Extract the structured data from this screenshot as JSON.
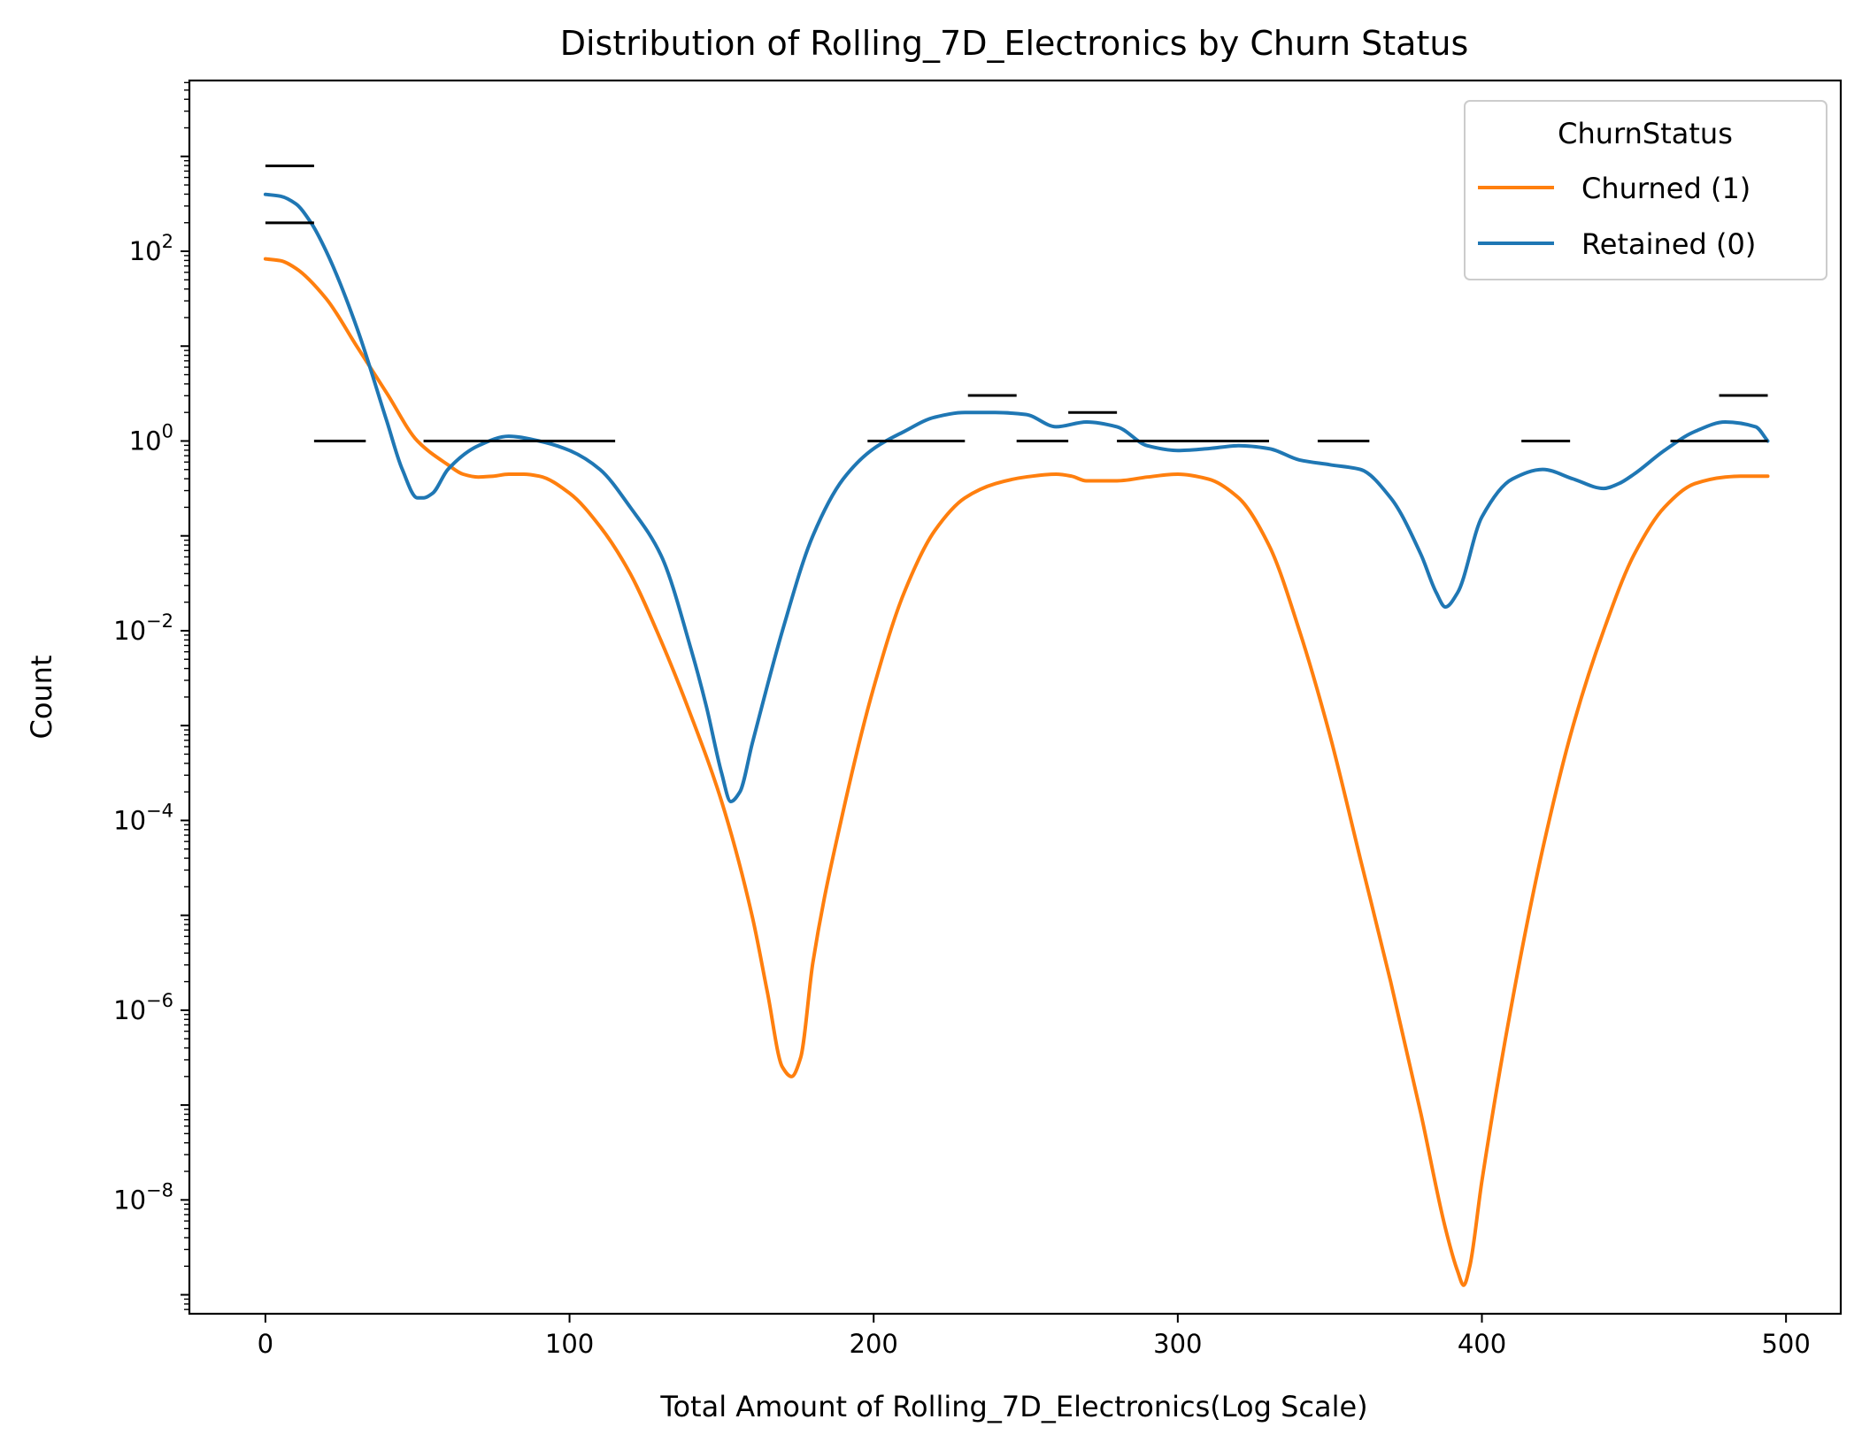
{
  "chart_data": {
    "type": "line",
    "title": "Distribution of Rolling_7D_Electronics by Churn Status",
    "xlabel": "Total Amount of Rolling_7D_Electronics(Log Scale)",
    "ylabel": "Count",
    "xlim": [
      -25,
      518
    ],
    "ylim_log10": [
      -9.2,
      3.8
    ],
    "yscale": "log",
    "grid": false,
    "x_ticks": [
      {
        "value": 0,
        "label": "0"
      },
      {
        "value": 100,
        "label": "100"
      },
      {
        "value": 200,
        "label": "200"
      },
      {
        "value": 300,
        "label": "300"
      },
      {
        "value": 400,
        "label": "400"
      },
      {
        "value": 500,
        "label": "500"
      }
    ],
    "y_ticks": [
      {
        "exp": 2,
        "base": "10",
        "sup": "2"
      },
      {
        "exp": 0,
        "base": "10",
        "sup": "0"
      },
      {
        "exp": -2,
        "base": "10",
        "sup": "−2"
      },
      {
        "exp": -4,
        "base": "10",
        "sup": "−4"
      },
      {
        "exp": -6,
        "base": "10",
        "sup": "−6"
      },
      {
        "exp": -8,
        "base": "10",
        "sup": "−8"
      }
    ],
    "legend": {
      "title": "ChurnStatus",
      "placement": "top-right",
      "entries": [
        {
          "label": "Churned (1)",
          "series_index": 0
        },
        {
          "label": "Retained (0)",
          "series_index": 1
        }
      ]
    },
    "series": [
      {
        "name": "Churned (1)",
        "color": "#ff7f0e",
        "x": [
          0,
          5,
          10,
          20,
          30,
          40,
          50,
          60,
          65,
          70,
          75,
          80,
          85,
          90,
          100,
          110,
          120,
          130,
          140,
          150,
          160,
          165,
          170,
          173,
          176,
          180,
          190,
          200,
          210,
          220,
          230,
          240,
          250,
          260,
          265,
          270,
          280,
          290,
          300,
          310,
          320,
          330,
          340,
          350,
          360,
          370,
          380,
          388,
          392,
          394,
          396,
          400,
          410,
          420,
          430,
          440,
          450,
          460,
          470,
          480,
          485,
          490,
          494
        ],
        "y_log10": [
          1.92,
          1.9,
          1.82,
          1.5,
          1.0,
          0.5,
          0.0,
          -0.25,
          -0.35,
          -0.38,
          -0.37,
          -0.35,
          -0.35,
          -0.37,
          -0.55,
          -0.9,
          -1.4,
          -2.1,
          -2.9,
          -3.8,
          -5.0,
          -5.8,
          -6.6,
          -6.7,
          -6.5,
          -5.5,
          -3.9,
          -2.6,
          -1.6,
          -0.95,
          -0.6,
          -0.45,
          -0.38,
          -0.35,
          -0.37,
          -0.42,
          -0.42,
          -0.38,
          -0.35,
          -0.4,
          -0.6,
          -1.1,
          -2.0,
          -3.1,
          -4.4,
          -5.7,
          -7.1,
          -8.3,
          -8.75,
          -8.9,
          -8.7,
          -7.8,
          -5.9,
          -4.3,
          -3.0,
          -2.0,
          -1.2,
          -0.7,
          -0.45,
          -0.38,
          -0.37,
          -0.37,
          -0.37
        ]
      },
      {
        "name": "Retained (0)",
        "color": "#1f77b4",
        "x": [
          0,
          5,
          10,
          15,
          20,
          30,
          40,
          45,
          50,
          52,
          55,
          60,
          70,
          80,
          90,
          100,
          110,
          120,
          130,
          140,
          145,
          150,
          153,
          156,
          160,
          170,
          180,
          190,
          200,
          210,
          220,
          230,
          240,
          250,
          260,
          270,
          280,
          290,
          300,
          310,
          320,
          330,
          340,
          350,
          360,
          370,
          380,
          385,
          388,
          392,
          400,
          410,
          420,
          430,
          440,
          445,
          450,
          460,
          470,
          480,
          490,
          494
        ],
        "y_log10": [
          2.6,
          2.58,
          2.5,
          2.3,
          2.0,
          1.2,
          0.2,
          -0.3,
          -0.6,
          -0.6,
          -0.55,
          -0.3,
          -0.05,
          0.05,
          0.0,
          -0.1,
          -0.3,
          -0.7,
          -1.2,
          -2.2,
          -2.8,
          -3.5,
          -3.8,
          -3.7,
          -3.2,
          -2.0,
          -1.0,
          -0.4,
          -0.08,
          0.1,
          0.25,
          0.3,
          0.3,
          0.28,
          0.15,
          0.2,
          0.15,
          -0.05,
          -0.1,
          -0.08,
          -0.05,
          -0.08,
          -0.2,
          -0.25,
          -0.3,
          -0.6,
          -1.2,
          -1.6,
          -1.75,
          -1.6,
          -0.8,
          -0.4,
          -0.3,
          -0.4,
          -0.5,
          -0.45,
          -0.35,
          -0.1,
          0.1,
          0.2,
          0.15,
          0.0
        ]
      }
    ],
    "markers": {
      "color": "#000000",
      "segments": [
        {
          "x0": 0,
          "x1": 16,
          "y_log10": 2.9
        },
        {
          "x0": 0,
          "x1": 16,
          "y_log10": 2.3
        },
        {
          "x0": 16,
          "x1": 33,
          "y_log10": 0
        },
        {
          "x0": 52,
          "x1": 115,
          "y_log10": 0
        },
        {
          "x0": 198,
          "x1": 230,
          "y_log10": 0
        },
        {
          "x0": 231,
          "x1": 247,
          "y_log10": 0.48
        },
        {
          "x0": 247,
          "x1": 264,
          "y_log10": 0
        },
        {
          "x0": 264,
          "x1": 280,
          "y_log10": 0.3
        },
        {
          "x0": 280,
          "x1": 330,
          "y_log10": 0
        },
        {
          "x0": 346,
          "x1": 363,
          "y_log10": 0
        },
        {
          "x0": 413,
          "x1": 429,
          "y_log10": 0
        },
        {
          "x0": 462,
          "x1": 494,
          "y_log10": 0
        },
        {
          "x0": 478,
          "x1": 494,
          "y_log10": 0.48
        }
      ]
    }
  }
}
